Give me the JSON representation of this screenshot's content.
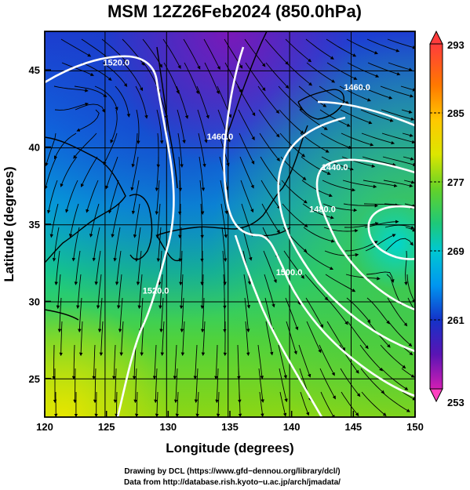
{
  "title": "MSM 12Z26Feb2024 (850.0hPa)",
  "map": {
    "xlabel": "Longitude (degrees)",
    "ylabel": "Latitude  (degrees)",
    "xlim": [
      120,
      150
    ],
    "ylim": [
      22.5,
      47.5
    ],
    "x_ticks": [
      "120",
      "125",
      "130",
      "135",
      "140",
      "145",
      "150"
    ],
    "y_ticks": [
      "25",
      "30",
      "35",
      "40",
      "45"
    ],
    "grid": true
  },
  "colorbar": {
    "min": 253,
    "max": 293,
    "labels": [
      "293",
      "285",
      "277",
      "269",
      "261",
      "253"
    ],
    "colors": [
      "#ff2020",
      "#ff8c00",
      "#ffd400",
      "#c8e600",
      "#32c832",
      "#00d2c8",
      "#00a0f0",
      "#1432c8",
      "#6414b4",
      "#ff40c0"
    ]
  },
  "contours": [
    {
      "label": "1520.0",
      "lon": 125.8,
      "lat": 45.3
    },
    {
      "label": "1460.0",
      "lon": 134.2,
      "lat": 40.5
    },
    {
      "label": "1460.0",
      "lon": 145.3,
      "lat": 43.7
    },
    {
      "label": "1440.0",
      "lon": 143.5,
      "lat": 38.5
    },
    {
      "label": "1480.0",
      "lon": 142.5,
      "lat": 35.8
    },
    {
      "label": "1500.0",
      "lon": 139.8,
      "lat": 31.7
    },
    {
      "label": "1520.0",
      "lon": 129.0,
      "lat": 30.5
    }
  ],
  "credits": {
    "line1": "Drawing by DCL (https://www.gfd−dennou.org/library/dcl/)",
    "line2": "Data from http://database.rish.kyoto−u.ac.jp/arch/jmadata/"
  }
}
